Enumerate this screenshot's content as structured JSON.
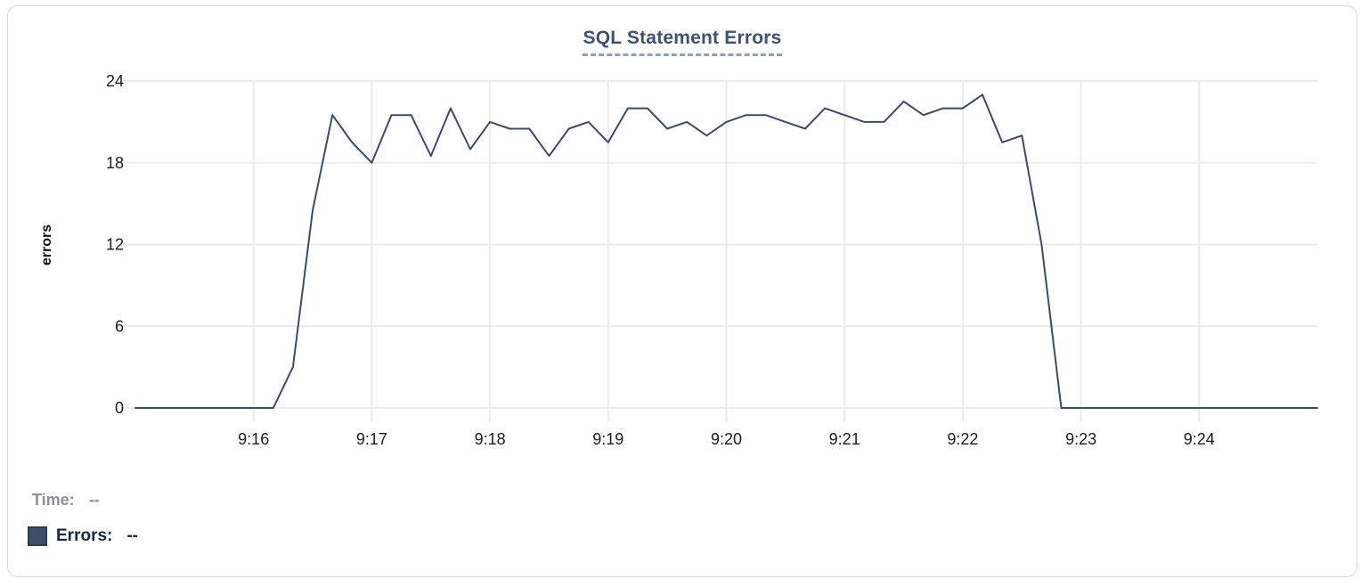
{
  "chart": {
    "title": "SQL Statement Errors"
  },
  "tooltip": {
    "time_label": "Time:",
    "time_value": "--",
    "series_label": "Errors:",
    "series_value": "--"
  },
  "colors": {
    "line": "#3b4b69",
    "grid": "#ebebeb",
    "tick_text": "#1c1c1c",
    "axis_label": "#111111",
    "title": "#3e5174",
    "title_underline": "#93a0b8",
    "legend_gray": "#8b929c",
    "legend_navy": "#16254d",
    "swatch": "#3f4e6b",
    "card_border": "#d9d9d9"
  },
  "chart_data": {
    "type": "line",
    "title": "SQL Statement Errors",
    "xlabel": "",
    "ylabel": "errors",
    "x_start": "9:15:00",
    "x_end": "9:25:00",
    "interval_seconds": 10,
    "ylim": [
      0,
      24
    ],
    "grid": true,
    "legend_position": "bottom-left",
    "y_ticks": [
      0,
      6,
      12,
      18,
      24
    ],
    "x_ticks": [
      {
        "t": 60,
        "label": "9:16"
      },
      {
        "t": 120,
        "label": "9:17"
      },
      {
        "t": 180,
        "label": "9:18"
      },
      {
        "t": 240,
        "label": "9:19"
      },
      {
        "t": 300,
        "label": "9:20"
      },
      {
        "t": 360,
        "label": "9:21"
      },
      {
        "t": 420,
        "label": "9:22"
      },
      {
        "t": 480,
        "label": "9:23"
      },
      {
        "t": 540,
        "label": "9:24"
      }
    ],
    "series": [
      {
        "name": "Errors",
        "color": "#3b4b69",
        "values": [
          0,
          0,
          0,
          0,
          0,
          0,
          0,
          0,
          3,
          14.5,
          21.5,
          19.5,
          18,
          21.5,
          21.5,
          18.5,
          22,
          19,
          21,
          20.5,
          20.5,
          18.5,
          20.5,
          21,
          19.5,
          22,
          22,
          20.5,
          21,
          20,
          21,
          21.5,
          21.5,
          21,
          20.5,
          22,
          21.5,
          21,
          21,
          22.5,
          21.5,
          22,
          22,
          23,
          19.5,
          20,
          12,
          0,
          0,
          0,
          0,
          0,
          0,
          0,
          0,
          0,
          0,
          0,
          0,
          0,
          0
        ]
      }
    ]
  }
}
